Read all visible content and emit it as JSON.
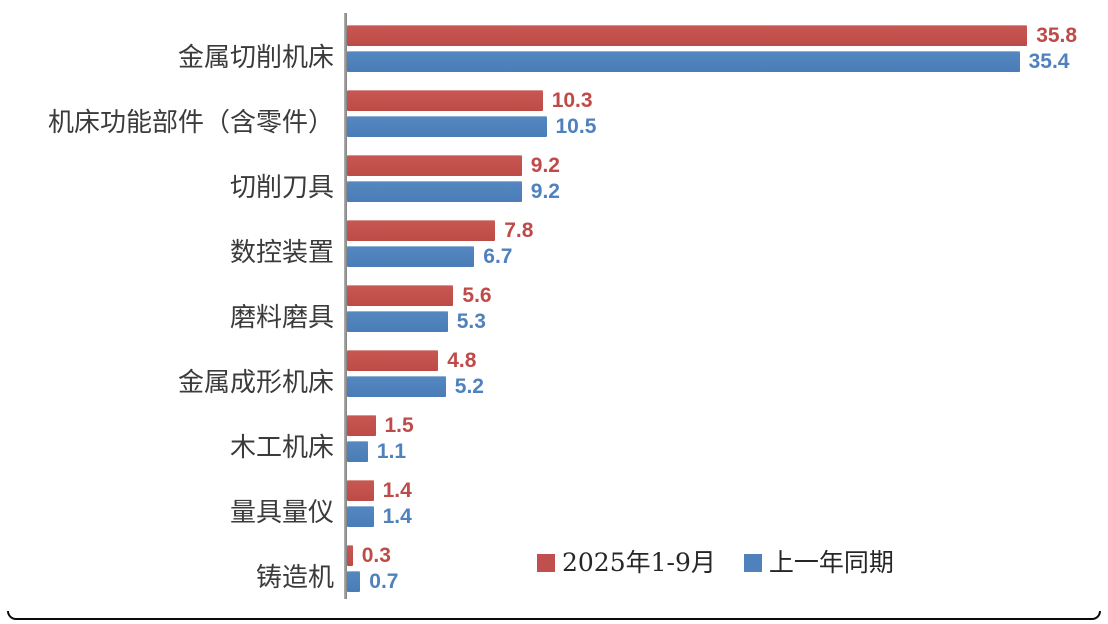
{
  "chart_data": {
    "type": "bar",
    "orientation": "horizontal",
    "title": "",
    "xlabel": "",
    "ylabel": "",
    "xlim": [
      0,
      36.6
    ],
    "grid": false,
    "value_labels": true,
    "legend_position": "bottom-inside",
    "categories": [
      "金属切削机床",
      "机床功能部件（含零件）",
      "切削刀具",
      "数控装置",
      "磨料磨具",
      "金属成形机床",
      "木工机床",
      "量具量仪",
      "铸造机"
    ],
    "series": [
      {
        "name": "2025年1-9月",
        "color": "#c0504d",
        "values": [
          35.8,
          10.3,
          9.2,
          7.8,
          5.6,
          4.8,
          1.5,
          1.4,
          0.3
        ]
      },
      {
        "name": "上一年同期",
        "color": "#4f81bd",
        "values": [
          35.4,
          10.5,
          9.2,
          6.7,
          5.3,
          5.2,
          1.1,
          1.4,
          0.7
        ]
      }
    ]
  },
  "legend": {
    "items": [
      {
        "label": "2025年1-9月",
        "color": "#c0504d"
      },
      {
        "label": "上一年同期",
        "color": "#4f81bd"
      }
    ]
  },
  "colors": {
    "series_red": "#c0504d",
    "series_blue": "#4f81bd",
    "value_label_red": "#be4b48",
    "value_label_blue": "#4f81bd",
    "axis_line": "#7f7f7f",
    "category_text": "#3b3b3b",
    "legend_text": "#262626",
    "border": "#0b0b0b",
    "background": "#ffffff"
  }
}
